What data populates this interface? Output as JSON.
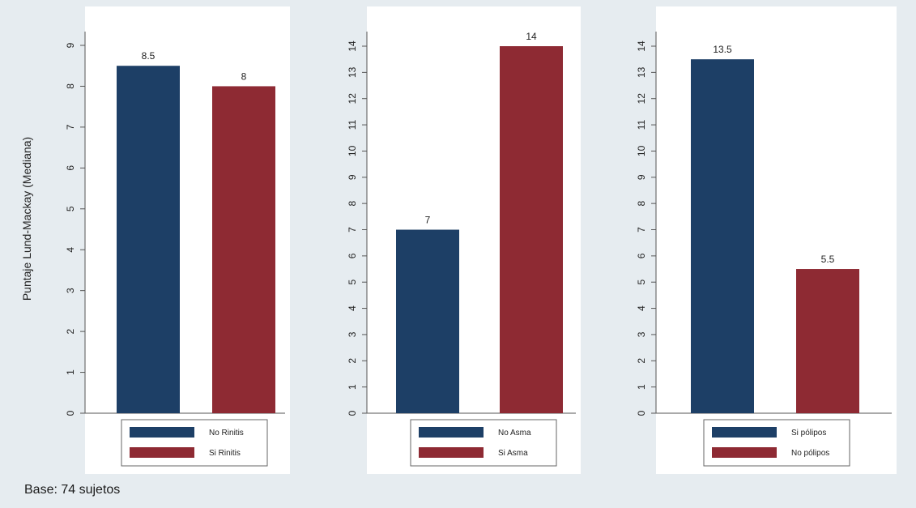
{
  "y_axis_title": "Puntaje Lund-Mackay (Mediana)",
  "footnote": "Base: 74 sujetos",
  "colors": {
    "background": "#e6ecf0",
    "panel": "#ffffff",
    "navy": "#1d3f66",
    "maroon": "#8e2a33",
    "axis": "#555555"
  },
  "chart_data": [
    {
      "type": "bar",
      "ylim": [
        0,
        9
      ],
      "ticks": [
        0,
        1,
        2,
        3,
        4,
        5,
        6,
        7,
        8,
        9
      ],
      "bars": [
        {
          "label": "No Rinitis",
          "value": 8.5,
          "value_label": "8.5",
          "color": "#1d3f66"
        },
        {
          "label": "Si Rinitis",
          "value": 8,
          "value_label": "8",
          "color": "#8e2a33"
        }
      ]
    },
    {
      "type": "bar",
      "ylim": [
        0,
        14
      ],
      "ticks": [
        0,
        1,
        2,
        3,
        4,
        5,
        6,
        7,
        8,
        9,
        10,
        11,
        12,
        13,
        14
      ],
      "bars": [
        {
          "label": "No Asma",
          "value": 7,
          "value_label": "7",
          "color": "#1d3f66"
        },
        {
          "label": "Si Asma",
          "value": 14,
          "value_label": "14",
          "color": "#8e2a33"
        }
      ]
    },
    {
      "type": "bar",
      "ylim": [
        0,
        14
      ],
      "ticks": [
        0,
        1,
        2,
        3,
        4,
        5,
        6,
        7,
        8,
        9,
        10,
        11,
        12,
        13,
        14
      ],
      "bars": [
        {
          "label": "Si pólipos",
          "value": 13.5,
          "value_label": "13.5",
          "color": "#1d3f66"
        },
        {
          "label": "No pólipos",
          "value": 5.5,
          "value_label": "5.5",
          "color": "#8e2a33"
        }
      ]
    }
  ]
}
